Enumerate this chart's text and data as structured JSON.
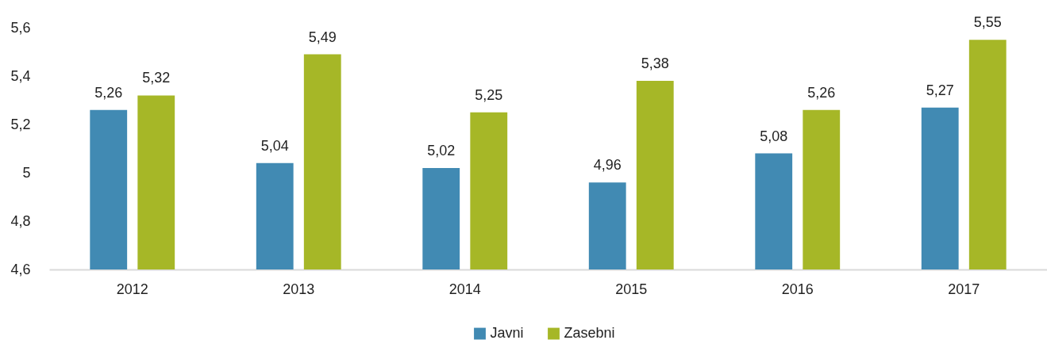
{
  "chart_data": {
    "type": "bar",
    "categories": [
      "2012",
      "2013",
      "2014",
      "2015",
      "2016",
      "2017"
    ],
    "series": [
      {
        "name": "Javni",
        "color": "#418ab3",
        "values": [
          5.26,
          5.04,
          5.02,
          4.96,
          5.08,
          5.27
        ],
        "value_labels": [
          "5,26",
          "5,04",
          "5,02",
          "4,96",
          "5,08",
          "5,27"
        ]
      },
      {
        "name": "Zasebni",
        "color": "#a6b727",
        "values": [
          5.32,
          5.49,
          5.25,
          5.38,
          5.26,
          5.55
        ],
        "value_labels": [
          "5,32",
          "5,49",
          "5,25",
          "5,38",
          "5,26",
          "5,55"
        ]
      }
    ],
    "ylim": [
      4.6,
      5.6
    ],
    "yticks": [
      {
        "value": 4.6,
        "label": "4,6"
      },
      {
        "value": 4.8,
        "label": "4,8"
      },
      5,
      {
        "value": 5.2,
        "label": "5,2"
      },
      {
        "value": 5.4,
        "label": "5,4"
      },
      {
        "value": 5.6,
        "label": "5,6"
      }
    ],
    "grid": false,
    "legend": "bottom"
  }
}
